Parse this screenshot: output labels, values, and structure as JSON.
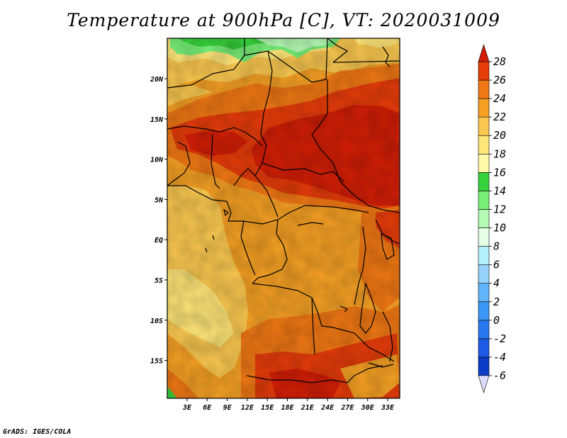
{
  "title": "Temperature at 900hPa [C], VT: 2020031009",
  "credit": "GrADS: IGES/COLA",
  "map": {
    "lon_labels": [
      "3E",
      "6E",
      "9E",
      "12E",
      "15E",
      "18E",
      "21E",
      "24E",
      "27E",
      "30E",
      "33E"
    ],
    "lat_labels": [
      "20N",
      "15N",
      "10N",
      "5N",
      "EQ",
      "5S",
      "10S",
      "15S"
    ]
  },
  "colorbar": {
    "labels": [
      "28",
      "26",
      "24",
      "22",
      "20",
      "18",
      "16",
      "14",
      "12",
      "10",
      "8",
      "6",
      "4",
      "2",
      "0",
      "-2",
      "-4",
      "-6"
    ],
    "colors": [
      "#1e0b78",
      "#0a3cc8",
      "#1e5ae6",
      "#2878f0",
      "#3c96f5",
      "#5fb4fa",
      "#96d2fa",
      "#b4f0fa",
      "#e6ffe6",
      "#b4fab4",
      "#78f078",
      "#37d23c",
      "#fffaaa",
      "#ffe678",
      "#fac850",
      "#f5a024",
      "#f07814",
      "#e63c0a",
      "#d21e06"
    ],
    "under_color": "#dcdcff",
    "over_color": "#d21e06"
  }
}
